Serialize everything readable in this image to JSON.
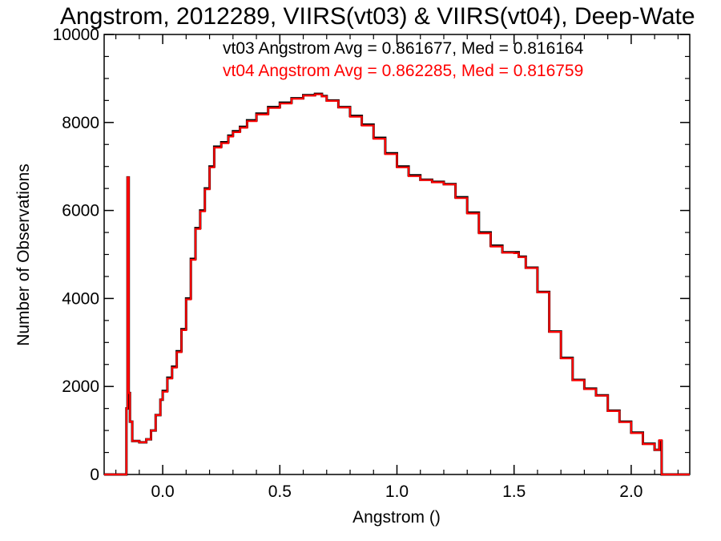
{
  "chart_data": {
    "type": "line",
    "step": true,
    "title": "Angstrom, 2012289, VIIRS(vt03) & VIIRS(vt04), Deep-Wate",
    "xlabel": "Angstrom ()",
    "ylabel": "Number of Observations",
    "xlim": [
      -0.25,
      2.25
    ],
    "ylim": [
      0,
      10000
    ],
    "x_ticks": [
      0.0,
      0.5,
      1.0,
      1.5,
      2.0
    ],
    "x_tick_labels": [
      "0.0",
      "0.5",
      "1.0",
      "1.5",
      "2.0"
    ],
    "y_ticks": [
      0,
      2000,
      4000,
      6000,
      8000,
      10000
    ],
    "y_tick_labels": [
      "0",
      "2000",
      "4000",
      "6000",
      "8000",
      "10000"
    ],
    "annotations": [
      {
        "text": "vt03 Angstrom Avg = 0.861677, Med = 0.816164",
        "color": "#000000"
      },
      {
        "text": "vt04 Angstrom Avg = 0.862285, Med = 0.816759",
        "color": "#ff0000"
      }
    ],
    "series": [
      {
        "color": "#000000",
        "x": [
          -0.25,
          -0.16,
          -0.155,
          -0.15,
          -0.145,
          -0.14,
          -0.13,
          -0.1,
          -0.07,
          -0.05,
          -0.03,
          -0.01,
          0.0,
          0.02,
          0.04,
          0.06,
          0.08,
          0.1,
          0.12,
          0.14,
          0.16,
          0.18,
          0.2,
          0.22,
          0.25,
          0.28,
          0.3,
          0.33,
          0.36,
          0.4,
          0.45,
          0.5,
          0.55,
          0.6,
          0.65,
          0.68,
          0.7,
          0.75,
          0.8,
          0.85,
          0.9,
          0.95,
          1.0,
          1.05,
          1.1,
          1.15,
          1.2,
          1.25,
          1.3,
          1.35,
          1.4,
          1.45,
          1.5,
          1.52,
          1.55,
          1.6,
          1.65,
          1.7,
          1.75,
          1.8,
          1.85,
          1.9,
          1.95,
          2.0,
          2.05,
          2.1,
          2.12,
          2.13,
          2.2,
          2.25
        ],
        "y": [
          0,
          0,
          1500,
          6750,
          1850,
          1200,
          760,
          730,
          800,
          1000,
          1350,
          1700,
          1900,
          2200,
          2450,
          2800,
          3300,
          4000,
          4900,
          5600,
          6000,
          6500,
          7000,
          7450,
          7550,
          7700,
          7800,
          7900,
          8050,
          8200,
          8350,
          8450,
          8550,
          8620,
          8650,
          8600,
          8500,
          8350,
          8150,
          7950,
          7650,
          7300,
          7000,
          6800,
          6700,
          6650,
          6600,
          6300,
          5950,
          5500,
          5200,
          5050,
          5050,
          4950,
          4700,
          4150,
          3250,
          2650,
          2150,
          1950,
          1800,
          1450,
          1200,
          950,
          700,
          560,
          760,
          0,
          0,
          0
        ]
      },
      {
        "color": "#ff0000",
        "x": [
          -0.25,
          -0.16,
          -0.155,
          -0.15,
          -0.145,
          -0.14,
          -0.13,
          -0.1,
          -0.07,
          -0.05,
          -0.03,
          -0.01,
          0.0,
          0.02,
          0.04,
          0.06,
          0.08,
          0.1,
          0.12,
          0.14,
          0.16,
          0.18,
          0.2,
          0.22,
          0.25,
          0.28,
          0.3,
          0.33,
          0.36,
          0.4,
          0.45,
          0.5,
          0.55,
          0.6,
          0.65,
          0.68,
          0.7,
          0.75,
          0.8,
          0.85,
          0.9,
          0.95,
          1.0,
          1.05,
          1.1,
          1.15,
          1.2,
          1.25,
          1.3,
          1.35,
          1.4,
          1.45,
          1.5,
          1.52,
          1.55,
          1.6,
          1.65,
          1.7,
          1.75,
          1.8,
          1.85,
          1.9,
          1.95,
          2.0,
          2.05,
          2.1,
          2.12,
          2.13,
          2.2,
          2.25
        ],
        "y": [
          0,
          0,
          1500,
          6750,
          1850,
          1200,
          760,
          730,
          800,
          1000,
          1350,
          1700,
          1880,
          2180,
          2430,
          2780,
          3280,
          3980,
          4880,
          5580,
          5980,
          6480,
          6980,
          7430,
          7530,
          7680,
          7780,
          7880,
          8030,
          8180,
          8330,
          8430,
          8540,
          8610,
          8640,
          8590,
          8490,
          8340,
          8130,
          7930,
          7630,
          7280,
          6980,
          6780,
          6690,
          6640,
          6590,
          6280,
          5930,
          5480,
          5180,
          5040,
          5030,
          4940,
          4690,
          4140,
          3240,
          2640,
          2140,
          1940,
          1790,
          1440,
          1190,
          940,
          690,
          560,
          780,
          0,
          0,
          0
        ]
      }
    ]
  }
}
